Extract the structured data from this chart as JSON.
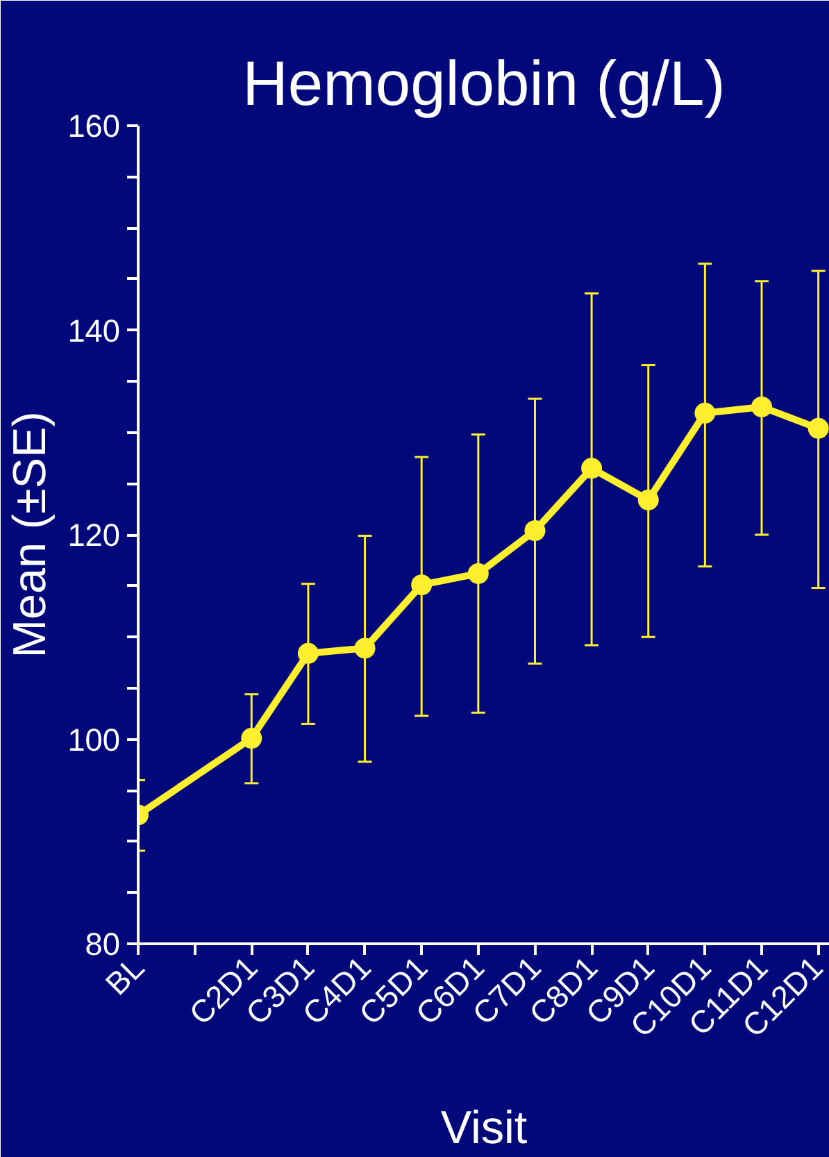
{
  "chart_data": {
    "type": "line",
    "title": "Hemoglobin (g/L)",
    "xlabel": "Visit",
    "ylabel": "Mean (±SE)",
    "categories": [
      "BL",
      null,
      "C2D1",
      "C3D1",
      "C4D1",
      "C5D1",
      "C6D1",
      "C7D1",
      "C8D1",
      "C9D1",
      "C10D1",
      "C11D1",
      "C12D1"
    ],
    "series": [
      {
        "color": "#ffef2e",
        "values": [
          92.6,
          null,
          100.1,
          108.4,
          108.9,
          115.1,
          116.2,
          120.4,
          126.5,
          123.4,
          131.9,
          132.5,
          130.4
        ],
        "errors": [
          [
            89.1,
            96.0
          ],
          null,
          [
            95.7,
            104.4
          ],
          [
            101.5,
            115.2
          ],
          [
            97.8,
            119.9
          ],
          [
            102.3,
            127.6
          ],
          [
            102.6,
            129.8
          ],
          [
            107.4,
            133.3
          ],
          [
            109.2,
            143.6
          ],
          [
            110.0,
            136.6
          ],
          [
            116.9,
            146.5
          ],
          [
            120.0,
            144.8
          ],
          [
            114.8,
            145.8
          ]
        ]
      }
    ],
    "ylim": [
      80,
      160
    ],
    "yticks": [
      80,
      {
        "value": 85,
        "label": null
      },
      {
        "value": 90,
        "label": null
      },
      {
        "value": 95,
        "label": null
      },
      100,
      {
        "value": 105,
        "label": null
      },
      {
        "value": 110,
        "label": null
      },
      {
        "value": 115,
        "label": null
      },
      120,
      {
        "value": 125,
        "label": null
      },
      {
        "value": 130,
        "label": null
      },
      {
        "value": 135,
        "label": null
      },
      140,
      {
        "value": 145,
        "label": null
      },
      {
        "value": 150,
        "label": null
      },
      {
        "value": 155,
        "label": null
      },
      160
    ],
    "marker": "circle",
    "line_style": "solid",
    "grid": false
  }
}
